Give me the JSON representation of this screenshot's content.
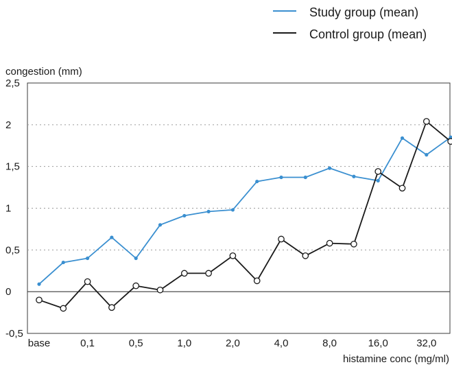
{
  "chart_data": {
    "type": "line",
    "ylabel": "congestion (mm)",
    "xlabel": "histamine conc (mg/ml)",
    "ylim": [
      -0.5,
      2.5
    ],
    "yticks": [
      -0.5,
      0,
      0.5,
      1,
      1.5,
      2,
      2.5
    ],
    "ytick_labels": [
      "-0,5",
      "0",
      "0,5",
      "1",
      "1,5",
      "2",
      "2,5"
    ],
    "grid": "horizontal dotted",
    "legend_position": "top-right",
    "x_tick_labels": [
      {
        "index": 0,
        "label": "base"
      },
      {
        "index": 2,
        "label": "0,1"
      },
      {
        "index": 4,
        "label": "0,5"
      },
      {
        "index": 6,
        "label": "1,0"
      },
      {
        "index": 8,
        "label": "2,0"
      },
      {
        "index": 10,
        "label": "4,0"
      },
      {
        "index": 12,
        "label": "8,0"
      },
      {
        "index": 14,
        "label": "16,0"
      },
      {
        "index": 16,
        "label": "32,0"
      }
    ],
    "point_count": 18,
    "series": [
      {
        "name": "Study group (mean)",
        "color": "#3a8fd0",
        "marker": "small-dot",
        "values": [
          0.09,
          0.35,
          0.4,
          0.65,
          0.4,
          0.8,
          0.91,
          0.96,
          0.98,
          1.32,
          1.37,
          1.37,
          1.48,
          1.38,
          1.33,
          1.84,
          1.64,
          1.85
        ]
      },
      {
        "name": "Control group (mean)",
        "color": "#1a1a1a",
        "marker": "open-circle",
        "values": [
          -0.1,
          -0.2,
          0.12,
          -0.19,
          0.07,
          0.02,
          0.22,
          0.22,
          0.43,
          0.13,
          0.63,
          0.43,
          0.58,
          0.57,
          1.44,
          1.24,
          2.04,
          1.8
        ]
      }
    ]
  }
}
